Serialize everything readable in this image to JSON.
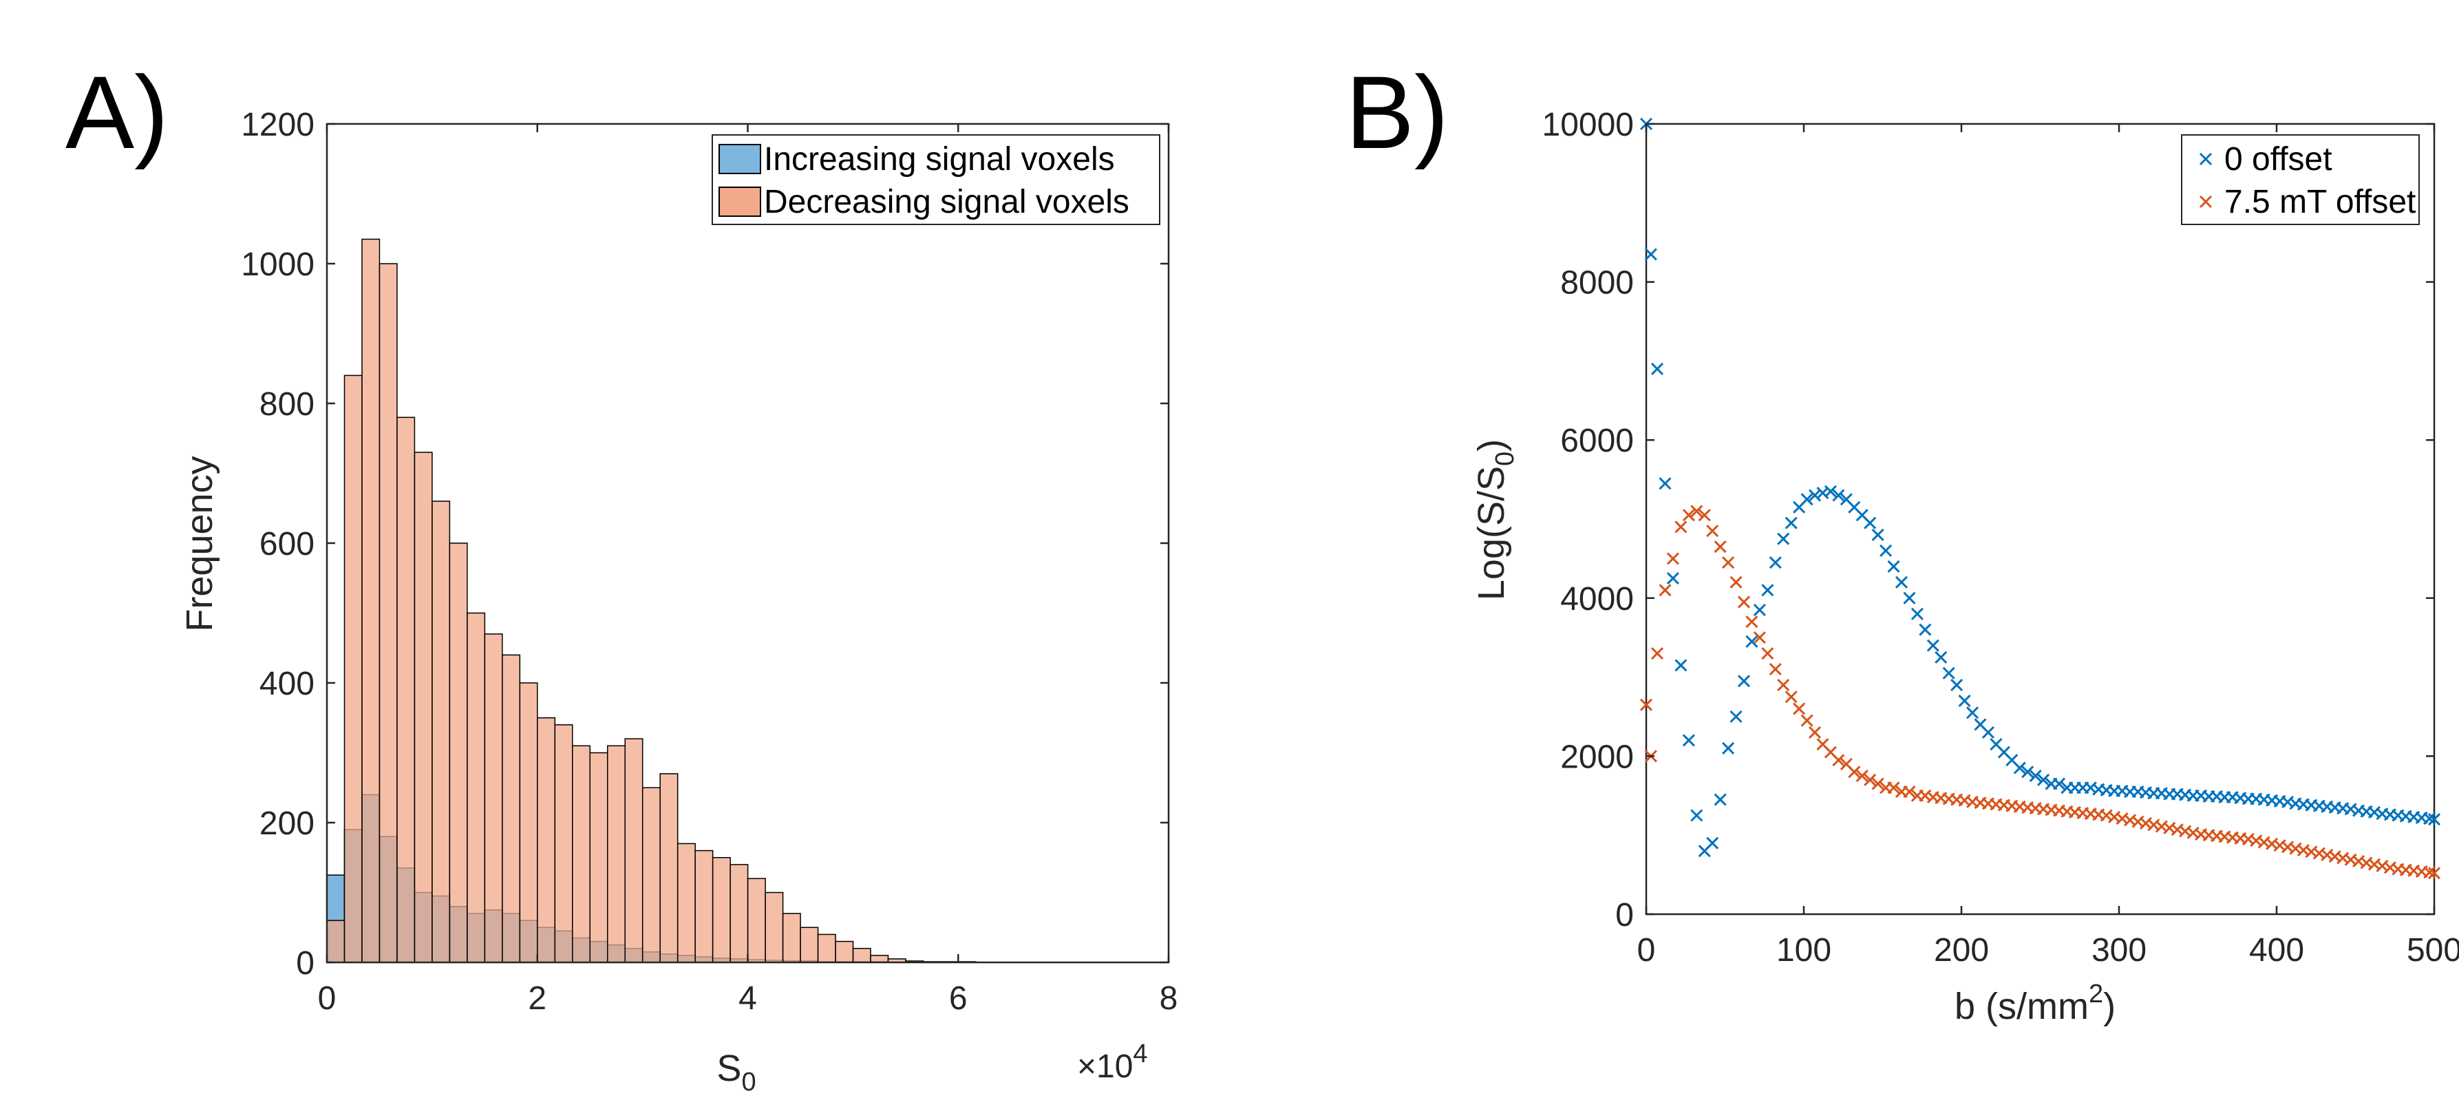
{
  "panels": {
    "a_label": "A)",
    "b_label": "B)"
  },
  "chart_data": [
    {
      "type": "bar",
      "subtype": "histogram",
      "xlabel": "S",
      "xlabel_sub": "0",
      "ylabel": "Frequency",
      "x_multiplier": "×10",
      "x_multiplier_exp": "4",
      "xlim": [
        0,
        8
      ],
      "ylim": [
        0,
        1200
      ],
      "xticks": [
        0,
        2,
        4,
        6,
        8
      ],
      "yticks": [
        0,
        200,
        400,
        600,
        800,
        1000,
        1200
      ],
      "bin_width": 0.1667,
      "bin_start": 0,
      "grid": false,
      "legend": "top-right",
      "series": [
        {
          "name": "Increasing signal voxels",
          "color": "#0072BD",
          "face": "#7EB6E0",
          "values": [
            125,
            190,
            240,
            180,
            135,
            100,
            95,
            80,
            70,
            75,
            70,
            60,
            50,
            45,
            35,
            30,
            25,
            20,
            15,
            12,
            10,
            8,
            6,
            5,
            4,
            3,
            2,
            2,
            1,
            1,
            1,
            1
          ]
        },
        {
          "name": "Decreasing signal voxels",
          "color": "#D95319",
          "face": "#F2A98A",
          "values": [
            60,
            840,
            1035,
            1000,
            780,
            730,
            660,
            600,
            500,
            470,
            440,
            400,
            350,
            340,
            310,
            300,
            310,
            320,
            250,
            270,
            170,
            160,
            150,
            140,
            120,
            100,
            70,
            50,
            40,
            30,
            20,
            10,
            5,
            2,
            1,
            1,
            1,
            0,
            0,
            0,
            0,
            0,
            0,
            0,
            0,
            0,
            0,
            0,
            0,
            0,
            0,
            0,
            0,
            0,
            0,
            0,
            0,
            0,
            0,
            0,
            0,
            0,
            0,
            0,
            0,
            0,
            0,
            0,
            0,
            0,
            0,
            0,
            0,
            0,
            0,
            0,
            0,
            0,
            0,
            0
          ]
        }
      ]
    },
    {
      "type": "scatter",
      "xlabel": "b (s/mm",
      "xlabel_sup": "2",
      "xlabel_end": ")",
      "ylabel": "Log(S/S",
      "ylabel_sub": "0",
      "ylabel_end": ")",
      "xlim": [
        0,
        500
      ],
      "ylim": [
        0,
        10000
      ],
      "xticks": [
        0,
        100,
        200,
        300,
        400,
        500
      ],
      "yticks": [
        0,
        2000,
        4000,
        6000,
        8000,
        10000
      ],
      "grid": false,
      "legend": "top-right",
      "series": [
        {
          "name": "0 offset",
          "color": "#0072BD",
          "x": [
            0,
            3,
            7,
            12,
            17,
            22,
            27,
            32,
            37,
            42,
            47,
            52,
            57,
            62,
            67,
            72,
            77,
            82,
            87,
            92,
            97,
            102,
            107,
            112,
            117,
            122,
            127,
            132,
            137,
            142,
            147,
            152,
            157,
            162,
            167,
            172,
            177,
            182,
            187,
            192,
            197,
            202,
            207,
            212,
            217,
            222,
            227,
            232,
            237,
            242,
            247,
            252,
            257,
            262,
            267,
            272,
            277,
            282,
            287,
            292,
            297,
            302,
            307,
            312,
            317,
            322,
            327,
            332,
            337,
            342,
            347,
            352,
            357,
            362,
            367,
            372,
            377,
            382,
            387,
            392,
            397,
            402,
            407,
            412,
            417,
            422,
            427,
            432,
            437,
            442,
            447,
            452,
            457,
            462,
            467,
            472,
            477,
            482,
            487,
            492,
            497,
            502
          ],
          "y": [
            10000,
            8350,
            6900,
            5450,
            4250,
            3150,
            2200,
            1250,
            800,
            900,
            1450,
            2100,
            2500,
            2950,
            3450,
            3850,
            4100,
            4450,
            4750,
            4950,
            5150,
            5250,
            5300,
            5330,
            5350,
            5300,
            5250,
            5150,
            5050,
            4950,
            4800,
            4600,
            4400,
            4200,
            4000,
            3800,
            3600,
            3400,
            3250,
            3050,
            2900,
            2700,
            2550,
            2400,
            2300,
            2150,
            2050,
            1950,
            1850,
            1800,
            1750,
            1700,
            1650,
            1650,
            1600,
            1600,
            1600,
            1600,
            1580,
            1570,
            1560,
            1560,
            1550,
            1550,
            1540,
            1530,
            1530,
            1520,
            1520,
            1510,
            1500,
            1500,
            1490,
            1490,
            1480,
            1480,
            1470,
            1460,
            1460,
            1450,
            1440,
            1430,
            1420,
            1400,
            1390,
            1380,
            1370,
            1360,
            1350,
            1340,
            1330,
            1310,
            1300,
            1290,
            1270,
            1260,
            1250,
            1240,
            1230,
            1220,
            1210,
            1200
          ]
        },
        {
          "name": "7.5 mT offset",
          "color": "#D95319",
          "x": [
            0,
            3,
            7,
            12,
            17,
            22,
            27,
            32,
            37,
            42,
            47,
            52,
            57,
            62,
            67,
            72,
            77,
            82,
            87,
            92,
            97,
            102,
            107,
            112,
            117,
            122,
            127,
            132,
            137,
            142,
            147,
            152,
            157,
            162,
            167,
            172,
            177,
            182,
            187,
            192,
            197,
            202,
            207,
            212,
            217,
            222,
            227,
            232,
            237,
            242,
            247,
            252,
            257,
            262,
            267,
            272,
            277,
            282,
            287,
            292,
            297,
            302,
            307,
            312,
            317,
            322,
            327,
            332,
            337,
            342,
            347,
            352,
            357,
            362,
            367,
            372,
            377,
            382,
            387,
            392,
            397,
            402,
            407,
            412,
            417,
            422,
            427,
            432,
            437,
            442,
            447,
            452,
            457,
            462,
            467,
            472,
            477,
            482,
            487,
            492,
            497,
            502
          ],
          "y": [
            2650,
            2000,
            3300,
            4100,
            4500,
            4900,
            5050,
            5100,
            5050,
            4850,
            4650,
            4450,
            4200,
            3950,
            3700,
            3500,
            3300,
            3100,
            2900,
            2750,
            2600,
            2450,
            2300,
            2150,
            2050,
            1950,
            1900,
            1800,
            1750,
            1700,
            1650,
            1600,
            1600,
            1550,
            1550,
            1500,
            1500,
            1480,
            1470,
            1460,
            1450,
            1440,
            1420,
            1410,
            1400,
            1390,
            1380,
            1370,
            1360,
            1350,
            1340,
            1330,
            1320,
            1310,
            1300,
            1290,
            1280,
            1270,
            1260,
            1250,
            1230,
            1210,
            1190,
            1170,
            1150,
            1130,
            1110,
            1090,
            1070,
            1050,
            1030,
            1010,
            1000,
            990,
            980,
            970,
            960,
            950,
            930,
            910,
            890,
            870,
            850,
            830,
            810,
            790,
            770,
            750,
            730,
            710,
            690,
            670,
            650,
            630,
            610,
            590,
            570,
            560,
            550,
            540,
            530,
            520
          ]
        }
      ]
    }
  ]
}
